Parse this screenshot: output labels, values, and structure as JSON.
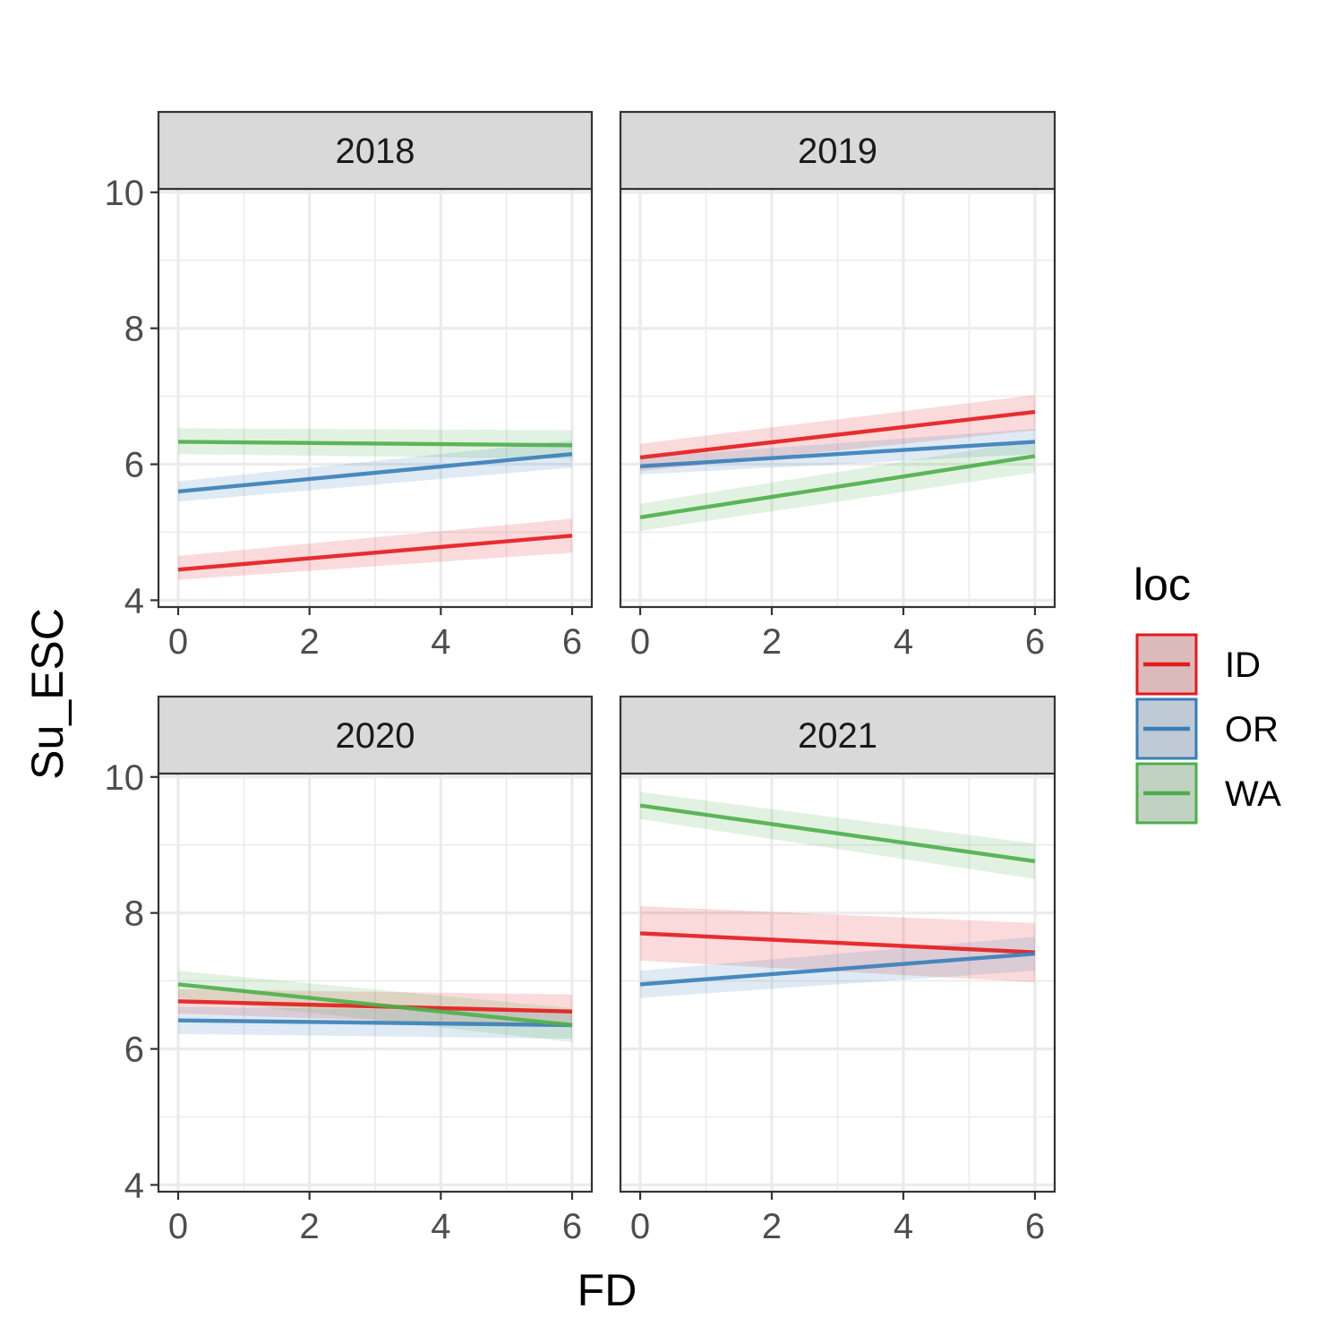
{
  "chart_data": {
    "type": "line",
    "facet_variable": "year",
    "xlabel": "FD",
    "ylabel": "Su_ESC",
    "xlim": [
      -0.3,
      6.3
    ],
    "ylim": [
      3.9,
      10.05
    ],
    "x_ticks": [
      0,
      2,
      4,
      6
    ],
    "x_tick_labels": [
      "0",
      "2",
      "4",
      "6"
    ],
    "y_ticks": [
      4,
      6,
      8,
      10
    ],
    "y_tick_labels": [
      "4",
      "6",
      "8",
      "10"
    ],
    "grid": true,
    "legend": {
      "title": "loc",
      "placement": "right",
      "entries": [
        {
          "label": "ID",
          "color": "#e41a1c"
        },
        {
          "label": "OR",
          "color": "#377eb8"
        },
        {
          "label": "WA",
          "color": "#4daf4a"
        }
      ]
    },
    "panels": [
      {
        "title": "2018",
        "series": [
          {
            "name": "ID",
            "x": [
              0,
              6
            ],
            "y": [
              4.45,
              4.95
            ],
            "ci_low": [
              4.3,
              4.7
            ],
            "ci_high": [
              4.65,
              5.2
            ]
          },
          {
            "name": "OR",
            "x": [
              0,
              6
            ],
            "y": [
              5.6,
              6.15
            ],
            "ci_low": [
              5.45,
              5.95
            ],
            "ci_high": [
              5.75,
              6.35
            ]
          },
          {
            "name": "WA",
            "x": [
              0,
              6
            ],
            "y": [
              6.33,
              6.28
            ],
            "ci_low": [
              6.15,
              6.08
            ],
            "ci_high": [
              6.53,
              6.5
            ]
          }
        ]
      },
      {
        "title": "2019",
        "series": [
          {
            "name": "ID",
            "x": [
              0,
              6
            ],
            "y": [
              6.1,
              6.77
            ],
            "ci_low": [
              5.9,
              6.5
            ],
            "ci_high": [
              6.3,
              7.02
            ]
          },
          {
            "name": "OR",
            "x": [
              0,
              6
            ],
            "y": [
              5.97,
              6.33
            ],
            "ci_low": [
              5.85,
              6.15
            ],
            "ci_high": [
              6.1,
              6.52
            ]
          },
          {
            "name": "WA",
            "x": [
              0,
              6
            ],
            "y": [
              5.22,
              6.12
            ],
            "ci_low": [
              5.02,
              5.88
            ],
            "ci_high": [
              5.42,
              6.35
            ]
          }
        ]
      },
      {
        "title": "2020",
        "series": [
          {
            "name": "ID",
            "x": [
              0,
              6
            ],
            "y": [
              6.7,
              6.55
            ],
            "ci_low": [
              6.52,
              6.32
            ],
            "ci_high": [
              6.88,
              6.8
            ]
          },
          {
            "name": "OR",
            "x": [
              0,
              6
            ],
            "y": [
              6.42,
              6.35
            ],
            "ci_low": [
              6.22,
              6.15
            ],
            "ci_high": [
              6.62,
              6.55
            ]
          },
          {
            "name": "WA",
            "x": [
              0,
              6
            ],
            "y": [
              6.95,
              6.35
            ],
            "ci_low": [
              6.75,
              6.1
            ],
            "ci_high": [
              7.15,
              6.6
            ]
          }
        ]
      },
      {
        "title": "2021",
        "series": [
          {
            "name": "ID",
            "x": [
              0,
              6
            ],
            "y": [
              7.7,
              7.42
            ],
            "ci_low": [
              7.3,
              6.98
            ],
            "ci_high": [
              8.1,
              7.85
            ]
          },
          {
            "name": "OR",
            "x": [
              0,
              6
            ],
            "y": [
              6.95,
              7.4
            ],
            "ci_low": [
              6.75,
              7.15
            ],
            "ci_high": [
              7.15,
              7.65
            ]
          },
          {
            "name": "WA",
            "x": [
              0,
              6
            ],
            "y": [
              9.58,
              8.76
            ],
            "ci_low": [
              9.38,
              8.5
            ],
            "ci_high": [
              9.78,
              9.02
            ]
          }
        ]
      }
    ]
  }
}
